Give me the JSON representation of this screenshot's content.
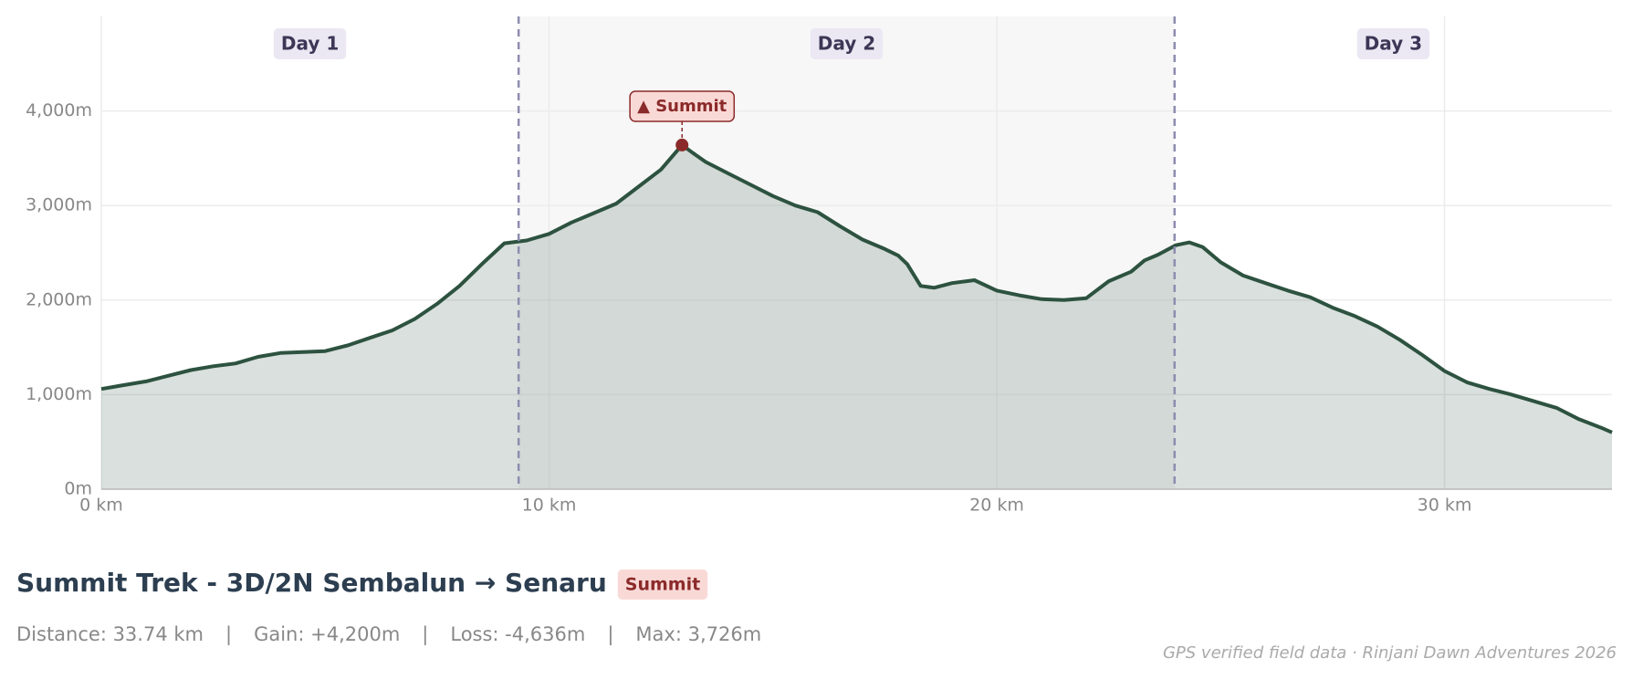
{
  "chart_data": {
    "type": "area",
    "title": "Summit Trek - 3D/2N Sembalun → Senaru",
    "badge": "Summit",
    "color": "#2d5240",
    "x": [
      0,
      0.5,
      1,
      1.5,
      2,
      2.5,
      3,
      3.5,
      4,
      4.5,
      5,
      5.5,
      6,
      6.5,
      7,
      7.5,
      8,
      8.5,
      9,
      9.5,
      10,
      10.5,
      11,
      11.5,
      12,
      12.5,
      12.97,
      13.2,
      13.5,
      14,
      14.5,
      15,
      15.5,
      16,
      16.5,
      17,
      17.5,
      17.8,
      18,
      18.3,
      18.6,
      19,
      19.5,
      20,
      20.5,
      21,
      21.5,
      22,
      22.5,
      23,
      23.3,
      23.6,
      24,
      24.3,
      24.6,
      25,
      25.5,
      26,
      26.5,
      27,
      27.5,
      28,
      28.5,
      29,
      29.5,
      30,
      30.5,
      31,
      31.5,
      32,
      32.5,
      33,
      33.5,
      33.74
    ],
    "values": [
      1060,
      1100,
      1140,
      1200,
      1260,
      1300,
      1330,
      1400,
      1440,
      1450,
      1460,
      1520,
      1600,
      1680,
      1800,
      1960,
      2150,
      2380,
      2600,
      2630,
      2700,
      2820,
      2920,
      3020,
      3200,
      3380,
      3640,
      3560,
      3460,
      3340,
      3220,
      3100,
      3000,
      2930,
      2780,
      2640,
      2540,
      2470,
      2380,
      2150,
      2130,
      2180,
      2210,
      2100,
      2050,
      2010,
      2000,
      2020,
      2200,
      2300,
      2420,
      2480,
      2580,
      2610,
      2560,
      2400,
      2260,
      2180,
      2100,
      2030,
      1920,
      1830,
      1720,
      1580,
      1420,
      1250,
      1130,
      1060,
      1000,
      930,
      860,
      740,
      650,
      600
    ],
    "xlim": [
      0,
      33.74
    ],
    "ylim": [
      0,
      5000
    ],
    "xticks": [
      {
        "value": 0,
        "label": "0 km"
      },
      {
        "value": 10,
        "label": "10 km"
      },
      {
        "value": 20,
        "label": "20 km"
      },
      {
        "value": 30,
        "label": "30 km"
      }
    ],
    "yticks": [
      {
        "value": 0,
        "label": "0m"
      },
      {
        "value": 1000,
        "label": "1,000m"
      },
      {
        "value": 2000,
        "label": "2,000m"
      },
      {
        "value": 3000,
        "label": "3,000m"
      },
      {
        "value": 4000,
        "label": "4,000m"
      }
    ],
    "grid": true,
    "days": [
      "Day 1",
      "Day 2",
      "Day 3"
    ],
    "day_breaks": [
      9.32,
      23.97
    ],
    "annotation": {
      "label": "▲ Summit",
      "x": 12.97,
      "y": 3640
    },
    "stats": [
      "Distance: 33.74 km",
      "Gain: +4,200m",
      "Loss: -4,636m",
      "Max: 3,726m"
    ],
    "stat_separator": "|",
    "credit": "GPS verified field data · Rinjani Dawn Adventures 2026"
  }
}
